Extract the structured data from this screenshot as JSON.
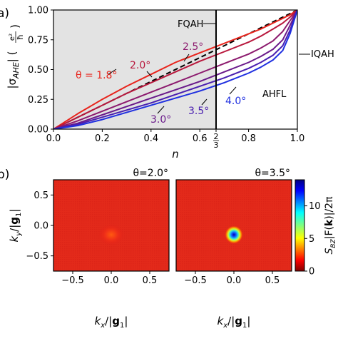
{
  "panel_labels": {
    "a": "a)",
    "b": "b)"
  },
  "chart_data": [
    {
      "type": "line",
      "panel": "a",
      "xlabel": "n",
      "ylabel_parts": {
        "base": "|σ",
        "sub": "AHE",
        "tail": "| (",
        "frac_num": "e²",
        "frac_den": "ħ",
        "close": ")"
      },
      "xlim": [
        0,
        1
      ],
      "ylim": [
        0,
        1
      ],
      "xticks": [
        {
          "v": 0.0,
          "label": "0.0"
        },
        {
          "v": 0.2,
          "label": "0.2"
        },
        {
          "v": 0.4,
          "label": "0.4"
        },
        {
          "v": 0.6,
          "label": "0.6"
        },
        {
          "v": 0.8,
          "label": "0.8"
        },
        {
          "v": 1.0,
          "label": "1.0"
        }
      ],
      "two_thirds_tick": {
        "v": 0.6667,
        "num": "2",
        "den": "3"
      },
      "yticks": [
        {
          "v": 0.0,
          "label": "0.00"
        },
        {
          "v": 0.25,
          "label": "0.25"
        },
        {
          "v": 0.5,
          "label": "0.50"
        },
        {
          "v": 0.75,
          "label": "0.75"
        },
        {
          "v": 1.0,
          "label": "1.00"
        }
      ],
      "shaded_region": {
        "x": [
          0,
          0.6667
        ],
        "color": "#e3e3e3"
      },
      "vline": {
        "x": 0.6667
      },
      "dashed_line": {
        "x": [
          0,
          1
        ],
        "y": [
          0,
          1
        ]
      },
      "x": [
        0,
        0.1,
        0.2,
        0.3,
        0.4,
        0.5,
        0.6,
        0.7,
        0.8,
        0.85,
        0.9,
        0.94,
        0.97,
        1.0
      ],
      "series": [
        {
          "name": "θ = 1.8°",
          "color": "#e8241c",
          "values": [
            0,
            0.13,
            0.25,
            0.36,
            0.46,
            0.56,
            0.64,
            0.72,
            0.8,
            0.84,
            0.89,
            0.93,
            0.96,
            1.0
          ]
        },
        {
          "name": "2.0°",
          "color": "#b8173c",
          "values": [
            0,
            0.1,
            0.2,
            0.3,
            0.39,
            0.48,
            0.57,
            0.65,
            0.73,
            0.78,
            0.84,
            0.89,
            0.94,
            1.0
          ]
        },
        {
          "name": "2.5°",
          "color": "#8c1a6e",
          "values": [
            0,
            0.07,
            0.15,
            0.23,
            0.31,
            0.39,
            0.47,
            0.55,
            0.63,
            0.68,
            0.74,
            0.82,
            0.91,
            1.0
          ]
        },
        {
          "name": "3.0°",
          "color": "#6a1a8a",
          "values": [
            0,
            0.05,
            0.12,
            0.19,
            0.26,
            0.33,
            0.4,
            0.48,
            0.56,
            0.61,
            0.67,
            0.75,
            0.87,
            1.0
          ]
        },
        {
          "name": "3.5°",
          "color": "#4a1fb0",
          "values": [
            0,
            0.04,
            0.1,
            0.16,
            0.22,
            0.29,
            0.36,
            0.43,
            0.51,
            0.56,
            0.62,
            0.7,
            0.83,
            1.0
          ]
        },
        {
          "name": "4.0°",
          "color": "#1f2fe0",
          "values": [
            0,
            0.03,
            0.08,
            0.14,
            0.2,
            0.26,
            0.32,
            0.39,
            0.47,
            0.52,
            0.58,
            0.66,
            0.8,
            1.0
          ]
        }
      ],
      "annotations": [
        "FQAH",
        "IQAH",
        "AHFL"
      ]
    },
    {
      "type": "heatmap",
      "panel": "b",
      "title": "θ=2.0°",
      "xlabel_parts": {
        "a": "k",
        "a_sub": "x",
        "b": "/|",
        "g": "g",
        "g_sub": "1",
        "c": "|"
      },
      "ylabel_parts": {
        "a": "k",
        "a_sub": "y",
        "b": "/|",
        "g": "g",
        "g_sub": "1",
        "c": "|"
      },
      "xlim": [
        -0.75,
        0.75
      ],
      "ylim": [
        -0.75,
        0.75
      ],
      "xticks": [
        {
          "v": -0.5,
          "label": "−0.5"
        },
        {
          "v": 0.0,
          "label": "0.0"
        },
        {
          "v": 0.5,
          "label": "0.5"
        }
      ],
      "yticks": [
        {
          "v": -0.5,
          "label": "−0.5"
        },
        {
          "v": 0.0,
          "label": "0.0"
        },
        {
          "v": 0.5,
          "label": "0.5"
        }
      ],
      "peak": {
        "x": 0,
        "y": 0,
        "value": 3.5
      },
      "background_value": 0.6
    },
    {
      "type": "heatmap",
      "panel": "b",
      "title": "θ=3.5°",
      "xlabel_parts": {
        "a": "k",
        "a_sub": "x",
        "b": "/|",
        "g": "g",
        "g_sub": "1",
        "c": "|"
      },
      "xlim": [
        -0.75,
        0.75
      ],
      "ylim": [
        -0.75,
        0.75
      ],
      "xticks": [
        {
          "v": -0.5,
          "label": "−0.5"
        },
        {
          "v": 0.0,
          "label": "0.0"
        },
        {
          "v": 0.5,
          "label": "0.5"
        }
      ],
      "peak": {
        "x": 0,
        "y": 0,
        "value": 14
      },
      "background_value": 0.6,
      "colorbar": {
        "range": [
          0,
          14
        ],
        "ticks": [
          {
            "v": 0,
            "label": "0"
          },
          {
            "v": 5,
            "label": "5"
          },
          {
            "v": 10,
            "label": "10"
          }
        ],
        "label_parts": {
          "s": "S",
          "s_sub": "BZ",
          "rest": "|F(",
          "k": "k",
          "end": ")|/2π"
        },
        "colormap": "jet"
      }
    }
  ]
}
